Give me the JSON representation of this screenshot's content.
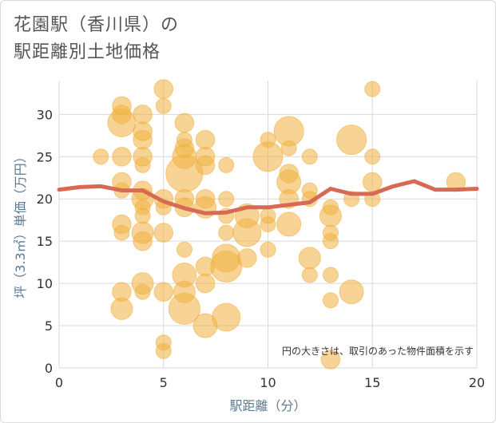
{
  "title_lines": [
    "花園駅（香川県）の",
    "駅距離別土地価格"
  ],
  "colors": {
    "bubble": "#f0b040",
    "line": "#d76a55",
    "grid": "#d9d9d9",
    "axis_label": "#5d7a95"
  },
  "chart_data": {
    "type": "scatter",
    "title": "花園駅（香川県）の駅距離別土地価格",
    "xlabel": "駅距離（分）",
    "ylabel": "坪（3.3㎡）単価（万円）",
    "xlim": [
      0,
      20
    ],
    "ylim": [
      0,
      34
    ],
    "xticks": [
      0,
      5,
      10,
      15,
      20
    ],
    "yticks": [
      0,
      5,
      10,
      15,
      20,
      25,
      30
    ],
    "grid": true,
    "annotation": "円の大きさは、取引のあった物件面積を示す",
    "points": [
      {
        "x": 2,
        "y": 25,
        "s": 1
      },
      {
        "x": 3,
        "y": 31,
        "s": 2
      },
      {
        "x": 3,
        "y": 30,
        "s": 2
      },
      {
        "x": 3,
        "y": 29,
        "s": 6
      },
      {
        "x": 3,
        "y": 25,
        "s": 2
      },
      {
        "x": 3,
        "y": 22,
        "s": 2
      },
      {
        "x": 3,
        "y": 21,
        "s": 1
      },
      {
        "x": 3,
        "y": 17,
        "s": 2
      },
      {
        "x": 3,
        "y": 16,
        "s": 1
      },
      {
        "x": 3,
        "y": 9,
        "s": 2
      },
      {
        "x": 3,
        "y": 7,
        "s": 3
      },
      {
        "x": 4,
        "y": 30,
        "s": 2
      },
      {
        "x": 4,
        "y": 28,
        "s": 2
      },
      {
        "x": 4,
        "y": 27,
        "s": 2
      },
      {
        "x": 4,
        "y": 25,
        "s": 2
      },
      {
        "x": 4,
        "y": 24,
        "s": 1
      },
      {
        "x": 4,
        "y": 21,
        "s": 2
      },
      {
        "x": 4,
        "y": 20,
        "s": 3
      },
      {
        "x": 4,
        "y": 19,
        "s": 1
      },
      {
        "x": 4,
        "y": 18,
        "s": 1
      },
      {
        "x": 4,
        "y": 16,
        "s": 3
      },
      {
        "x": 4,
        "y": 15,
        "s": 2
      },
      {
        "x": 4,
        "y": 10,
        "s": 3
      },
      {
        "x": 4,
        "y": 9,
        "s": 1
      },
      {
        "x": 5,
        "y": 33,
        "s": 2
      },
      {
        "x": 5,
        "y": 31,
        "s": 1
      },
      {
        "x": 5,
        "y": 20,
        "s": 2
      },
      {
        "x": 5,
        "y": 19,
        "s": 1
      },
      {
        "x": 5,
        "y": 16,
        "s": 2
      },
      {
        "x": 5,
        "y": 9,
        "s": 2
      },
      {
        "x": 5,
        "y": 3,
        "s": 1
      },
      {
        "x": 5,
        "y": 2,
        "s": 1
      },
      {
        "x": 6,
        "y": 29,
        "s": 2
      },
      {
        "x": 6,
        "y": 27,
        "s": 1
      },
      {
        "x": 6,
        "y": 26,
        "s": 2
      },
      {
        "x": 6,
        "y": 25,
        "s": 4
      },
      {
        "x": 6,
        "y": 23,
        "s": 12
      },
      {
        "x": 6,
        "y": 20,
        "s": 2
      },
      {
        "x": 6,
        "y": 19,
        "s": 2
      },
      {
        "x": 6,
        "y": 14,
        "s": 1
      },
      {
        "x": 6,
        "y": 11,
        "s": 4
      },
      {
        "x": 6,
        "y": 9,
        "s": 3
      },
      {
        "x": 6,
        "y": 7,
        "s": 8
      },
      {
        "x": 7,
        "y": 27,
        "s": 2
      },
      {
        "x": 7,
        "y": 25,
        "s": 2
      },
      {
        "x": 7,
        "y": 24,
        "s": 2
      },
      {
        "x": 7,
        "y": 20,
        "s": 2
      },
      {
        "x": 7,
        "y": 19,
        "s": 3
      },
      {
        "x": 7,
        "y": 12,
        "s": 2
      },
      {
        "x": 7,
        "y": 10,
        "s": 2
      },
      {
        "x": 7,
        "y": 5,
        "s": 4
      },
      {
        "x": 8,
        "y": 24,
        "s": 1
      },
      {
        "x": 8,
        "y": 20,
        "s": 1
      },
      {
        "x": 8,
        "y": 18,
        "s": 1
      },
      {
        "x": 8,
        "y": 16,
        "s": 1
      },
      {
        "x": 8,
        "y": 13,
        "s": 6
      },
      {
        "x": 8,
        "y": 12,
        "s": 8
      },
      {
        "x": 8,
        "y": 6,
        "s": 6
      },
      {
        "x": 9,
        "y": 18,
        "s": 4
      },
      {
        "x": 9,
        "y": 16,
        "s": 6
      },
      {
        "x": 9,
        "y": 13,
        "s": 2
      },
      {
        "x": 10,
        "y": 27,
        "s": 1
      },
      {
        "x": 10,
        "y": 25,
        "s": 7
      },
      {
        "x": 10,
        "y": 18,
        "s": 1
      },
      {
        "x": 10,
        "y": 17,
        "s": 1
      },
      {
        "x": 10,
        "y": 14,
        "s": 1
      },
      {
        "x": 11,
        "y": 28,
        "s": 7
      },
      {
        "x": 11,
        "y": 26,
        "s": 1
      },
      {
        "x": 11,
        "y": 23,
        "s": 2
      },
      {
        "x": 11,
        "y": 22,
        "s": 4
      },
      {
        "x": 11,
        "y": 20,
        "s": 2
      },
      {
        "x": 11,
        "y": 17,
        "s": 4
      },
      {
        "x": 12,
        "y": 25,
        "s": 1
      },
      {
        "x": 12,
        "y": 21,
        "s": 1
      },
      {
        "x": 12,
        "y": 20,
        "s": 1
      },
      {
        "x": 12,
        "y": 13,
        "s": 3
      },
      {
        "x": 12,
        "y": 11,
        "s": 1
      },
      {
        "x": 13,
        "y": 19,
        "s": 1
      },
      {
        "x": 13,
        "y": 18,
        "s": 3
      },
      {
        "x": 13,
        "y": 16,
        "s": 1
      },
      {
        "x": 13,
        "y": 15,
        "s": 1
      },
      {
        "x": 13,
        "y": 11,
        "s": 1
      },
      {
        "x": 13,
        "y": 8,
        "s": 1
      },
      {
        "x": 13,
        "y": 1,
        "s": 2
      },
      {
        "x": 14,
        "y": 27,
        "s": 7
      },
      {
        "x": 14,
        "y": 20,
        "s": 1
      },
      {
        "x": 14,
        "y": 9,
        "s": 4
      },
      {
        "x": 15,
        "y": 33,
        "s": 1
      },
      {
        "x": 15,
        "y": 25,
        "s": 1
      },
      {
        "x": 15,
        "y": 22,
        "s": 2
      },
      {
        "x": 15,
        "y": 20,
        "s": 1
      },
      {
        "x": 19,
        "y": 22,
        "s": 2
      }
    ],
    "series": [
      {
        "type": "line",
        "x": [
          0,
          1,
          2,
          3,
          4,
          5,
          6,
          7,
          8,
          9,
          10,
          11,
          12,
          13,
          14,
          15,
          16,
          17,
          18,
          19,
          20
        ],
        "values": [
          21.1,
          21.4,
          21.5,
          21.0,
          21.0,
          19.7,
          18.9,
          18.3,
          18.4,
          19.0,
          19.0,
          19.3,
          19.6,
          21.2,
          20.6,
          20.6,
          21.5,
          22.1,
          21.1,
          21.1,
          21.2
        ]
      }
    ]
  }
}
